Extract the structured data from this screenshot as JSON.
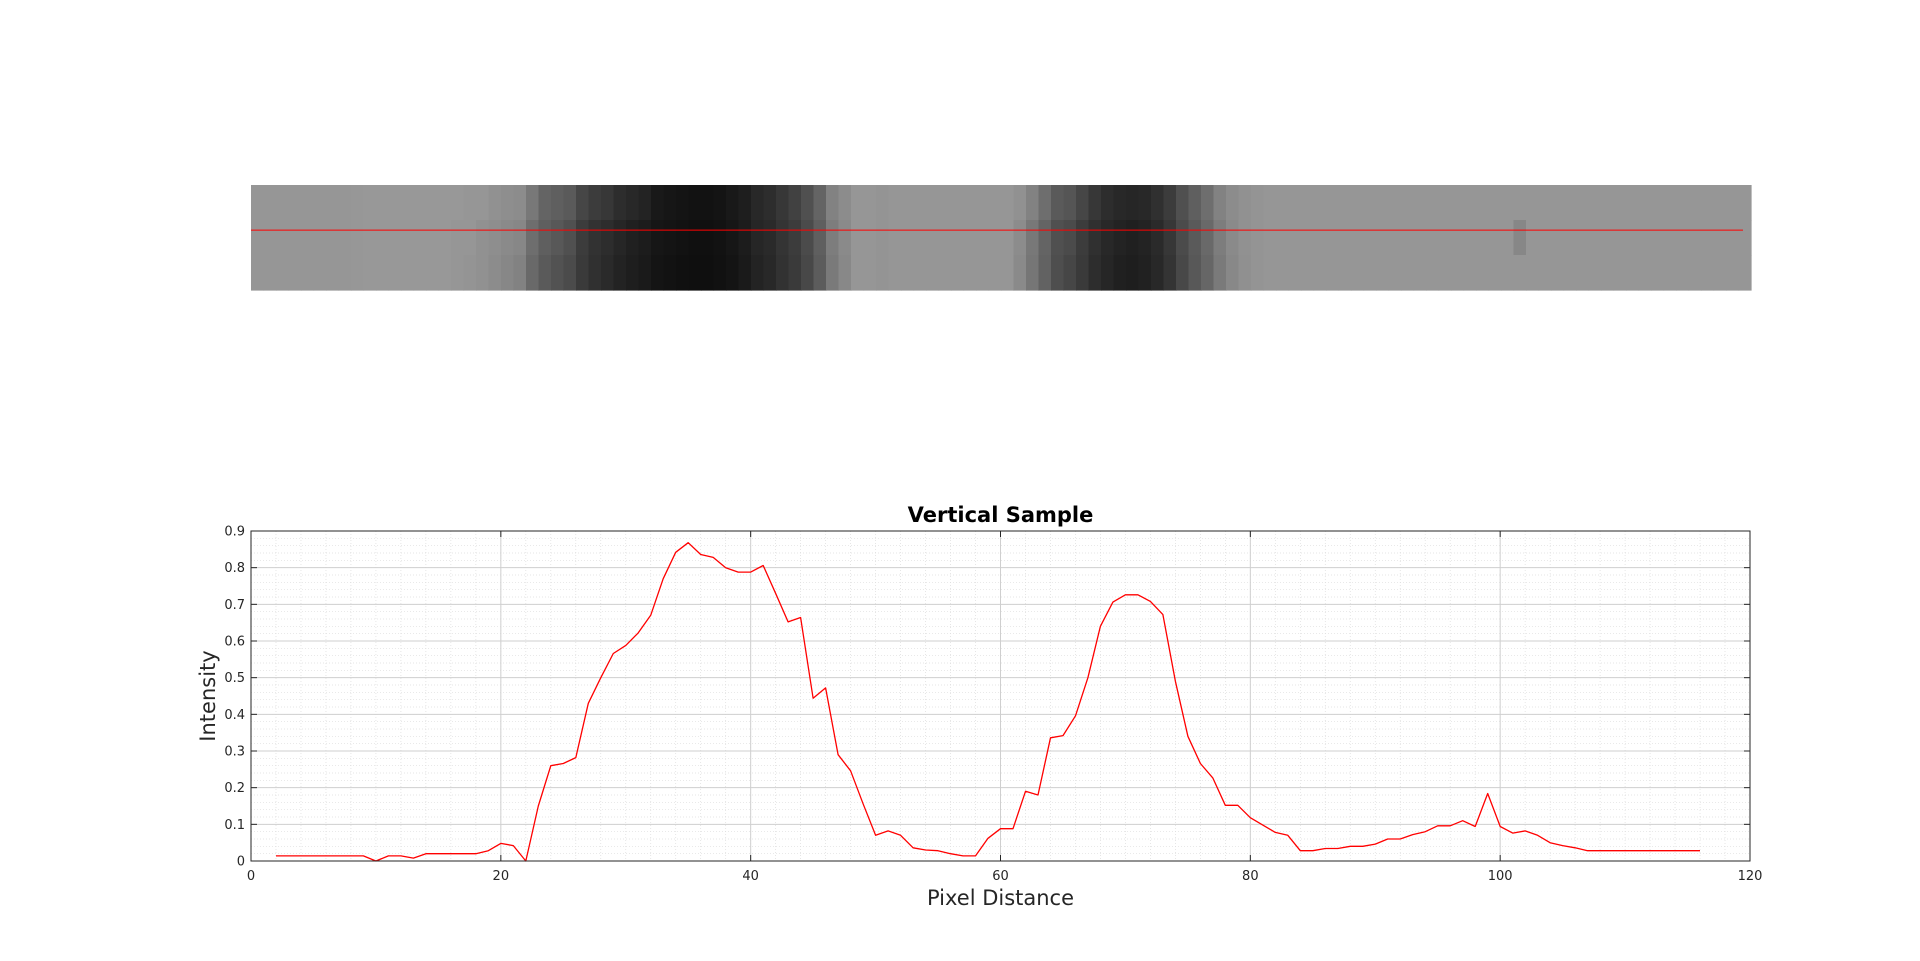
{
  "image_strip": {
    "marker_color": "#ff0000",
    "columns": 120,
    "row_gray_levels": [
      [
        150,
        150,
        150,
        150,
        150,
        150,
        150,
        150,
        151,
        152,
        152,
        152,
        152,
        152,
        152,
        152,
        152,
        150,
        150,
        145,
        142,
        140,
        120,
        100,
        95,
        90,
        70,
        60,
        55,
        45,
        40,
        35,
        25,
        22,
        20,
        18,
        18,
        20,
        25,
        30,
        40,
        45,
        55,
        65,
        80,
        100,
        130,
        140,
        150,
        150,
        148,
        150,
        150,
        150,
        150,
        150,
        150,
        150,
        150,
        150,
        150,
        145,
        130,
        110,
        90,
        85,
        70,
        55,
        45,
        40,
        38,
        40,
        48,
        60,
        80,
        95,
        110,
        130,
        140,
        145,
        148,
        150,
        150,
        150,
        150,
        150,
        150,
        150,
        150,
        150,
        150,
        150,
        150,
        150,
        150,
        150,
        150,
        150,
        150,
        150,
        150,
        150,
        150,
        150,
        150,
        150,
        150,
        150,
        150,
        150,
        150,
        150,
        150,
        150,
        150,
        150,
        150,
        150,
        150,
        150
      ],
      [
        150,
        150,
        150,
        150,
        150,
        150,
        150,
        150,
        151,
        152,
        152,
        152,
        152,
        152,
        152,
        152,
        150,
        150,
        145,
        142,
        138,
        135,
        110,
        95,
        88,
        80,
        60,
        50,
        45,
        38,
        32,
        28,
        22,
        20,
        18,
        16,
        16,
        18,
        22,
        28,
        38,
        42,
        52,
        60,
        75,
        95,
        125,
        138,
        150,
        150,
        148,
        150,
        150,
        150,
        150,
        150,
        150,
        150,
        150,
        150,
        150,
        140,
        120,
        100,
        80,
        75,
        60,
        48,
        40,
        35,
        32,
        35,
        42,
        55,
        75,
        90,
        105,
        125,
        138,
        145,
        148,
        150,
        150,
        150,
        150,
        150,
        150,
        150,
        150,
        150,
        150,
        150,
        150,
        150,
        150,
        150,
        150,
        150,
        150,
        150,
        150,
        135,
        150,
        150,
        150,
        150,
        150,
        150,
        150,
        150,
        150,
        150,
        150,
        150,
        150,
        150,
        150,
        150,
        150,
        150
      ],
      [
        150,
        150,
        150,
        150,
        150,
        150,
        150,
        150,
        151,
        152,
        152,
        152,
        152,
        152,
        152,
        152,
        150,
        148,
        145,
        140,
        135,
        130,
        105,
        90,
        82,
        75,
        58,
        48,
        42,
        35,
        30,
        26,
        20,
        18,
        16,
        15,
        15,
        17,
        20,
        26,
        35,
        40,
        50,
        58,
        72,
        92,
        122,
        136,
        150,
        150,
        148,
        150,
        150,
        150,
        150,
        150,
        150,
        150,
        150,
        150,
        150,
        138,
        118,
        98,
        78,
        70,
        58,
        45,
        38,
        32,
        30,
        33,
        40,
        52,
        72,
        88,
        102,
        122,
        136,
        144,
        148,
        150,
        150,
        150,
        150,
        150,
        150,
        150,
        150,
        150,
        150,
        150,
        150,
        150,
        150,
        150,
        150,
        150,
        150,
        150,
        150,
        150,
        150,
        150,
        150,
        150,
        150,
        150,
        150,
        150,
        150,
        150,
        150,
        150,
        150,
        150,
        150,
        150,
        150,
        150
      ]
    ]
  },
  "chart_data": {
    "type": "line",
    "title": "Vertical Sample",
    "xlabel": "Pixel Distance",
    "ylabel": "Intensity",
    "xlim": [
      0,
      120
    ],
    "ylim": [
      0,
      0.9
    ],
    "xticks": [
      0,
      20,
      40,
      60,
      80,
      100,
      120
    ],
    "yticks": [
      0,
      0.1,
      0.2,
      0.3,
      0.4,
      0.5,
      0.6,
      0.7,
      0.8,
      0.9
    ],
    "grid": true,
    "minor_grid": true,
    "series": [
      {
        "color": "#ff0000",
        "x": [
          2,
          3,
          4,
          5,
          6,
          7,
          8,
          9,
          10,
          11,
          12,
          13,
          14,
          15,
          16,
          17,
          18,
          19,
          20,
          21,
          22,
          23,
          24,
          25,
          26,
          27,
          28,
          29,
          30,
          31,
          32,
          33,
          34,
          35,
          36,
          37,
          38,
          39,
          40,
          41,
          42,
          43,
          44,
          45,
          46,
          47,
          48,
          49,
          50,
          51,
          52,
          53,
          54,
          55,
          56,
          57,
          58,
          59,
          60,
          61,
          62,
          63,
          64,
          65,
          66,
          67,
          68,
          69,
          70,
          71,
          72,
          73,
          74,
          75,
          76,
          77,
          78,
          79,
          80,
          81,
          82,
          83,
          84,
          85,
          86,
          87,
          88,
          89,
          90,
          91,
          92,
          93,
          94,
          95,
          96,
          97,
          98,
          99,
          100,
          101,
          102,
          103,
          104,
          105,
          106,
          107,
          108,
          109,
          110,
          111,
          112,
          113,
          114,
          115,
          116
        ],
        "y": [
          0.014,
          0.014,
          0.014,
          0.014,
          0.014,
          0.014,
          0.014,
          0.014,
          0.0,
          0.014,
          0.014,
          0.008,
          0.02,
          0.02,
          0.02,
          0.02,
          0.02,
          0.028,
          0.048,
          0.042,
          0.0,
          0.15,
          0.26,
          0.266,
          0.282,
          0.43,
          0.5,
          0.566,
          0.588,
          0.622,
          0.67,
          0.77,
          0.842,
          0.868,
          0.836,
          0.828,
          0.8,
          0.788,
          0.788,
          0.806,
          0.73,
          0.652,
          0.664,
          0.444,
          0.472,
          0.29,
          0.246,
          0.156,
          0.07,
          0.082,
          0.07,
          0.036,
          0.03,
          0.028,
          0.02,
          0.014,
          0.014,
          0.062,
          0.088,
          0.088,
          0.19,
          0.18,
          0.336,
          0.342,
          0.396,
          0.5,
          0.64,
          0.706,
          0.726,
          0.726,
          0.708,
          0.672,
          0.49,
          0.34,
          0.266,
          0.226,
          0.152,
          0.152,
          0.118,
          0.098,
          0.078,
          0.07,
          0.028,
          0.028,
          0.034,
          0.034,
          0.04,
          0.04,
          0.046,
          0.06,
          0.06,
          0.072,
          0.08,
          0.096,
          0.096,
          0.11,
          0.094,
          0.184,
          0.094,
          0.076,
          0.082,
          0.07,
          0.05,
          0.042,
          0.036,
          0.028,
          0.028,
          0.028,
          0.028,
          0.028,
          0.028,
          0.028,
          0.028,
          0.028,
          0.028
        ]
      }
    ]
  }
}
